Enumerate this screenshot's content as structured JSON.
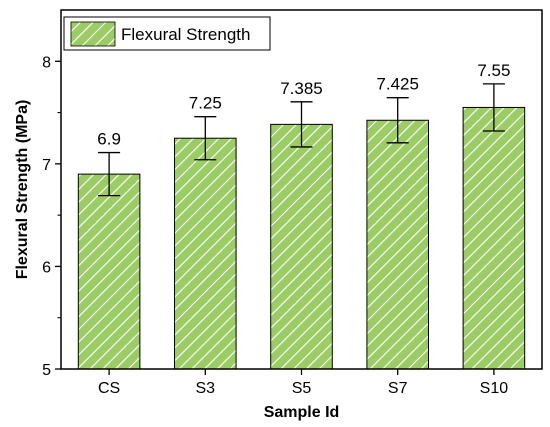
{
  "chart_data": {
    "type": "bar",
    "categories": [
      "CS",
      "S3",
      "S5",
      "S7",
      "S10"
    ],
    "series": [
      {
        "name": "Flexural Strength",
        "values": [
          6.9,
          7.25,
          7.385,
          7.425,
          7.55
        ],
        "errors": [
          0.21,
          0.21,
          0.22,
          0.22,
          0.23
        ],
        "value_labels": [
          "6.9",
          "7.25",
          "7.385",
          "7.425",
          "7.55"
        ],
        "color": "#9ccc65",
        "hatch": "diagonal"
      }
    ],
    "xlabel": "Sample Id",
    "ylabel": "Flexural Strength (MPa)",
    "ylim": [
      5,
      8.5
    ],
    "yticks": [
      5,
      6,
      7,
      8
    ],
    "grid": false,
    "legend": "top-left"
  }
}
